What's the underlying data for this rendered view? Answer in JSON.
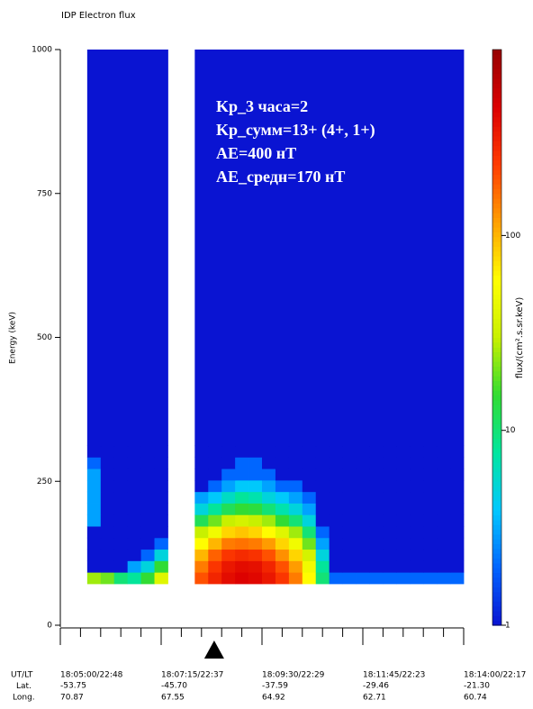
{
  "chart_data": {
    "type": "heatmap",
    "title": "IDP Electron flux",
    "ylabel": "Energy (keV)",
    "colorbar_label": "flux/(cm².s.sr.keV)",
    "annotations": [
      "Kp_3 часа=2",
      "Kp_сумм=13+ (4+, 1+)",
      "AE=400 нТ",
      "AE_средн=170 нТ"
    ],
    "xlim": [
      0,
      540
    ],
    "ylim": [
      0,
      1000
    ],
    "yticks": [
      0,
      250,
      500,
      750,
      1000
    ],
    "xticks": [
      {
        "value": 0,
        "label": "18:05:00/22:48"
      },
      {
        "value": 135,
        "label": "18:07:15/22:37"
      },
      {
        "value": 270,
        "label": "18:09:30/22:29"
      },
      {
        "value": 405,
        "label": "18:11:45/22:23"
      },
      {
        "value": 540,
        "label": "18:14:00/22:17"
      }
    ],
    "xminorticks": [
      27,
      54,
      81,
      108,
      162,
      189,
      216,
      243,
      297,
      324,
      351,
      378,
      432,
      459,
      486,
      513
    ],
    "xtick_rows": [
      "UT/LT",
      "Lat.",
      "Long."
    ],
    "lat": [
      "-53.75",
      "-45.70",
      "-37.59",
      "-29.46",
      "-21.30"
    ],
    "long": [
      "70.87",
      "67.55",
      "64.92",
      "62.71",
      "60.74"
    ],
    "marker_x": 206,
    "clim": [
      1,
      900
    ],
    "clog": true,
    "cticks": [
      1,
      10,
      100
    ],
    "colormap": [
      "#0a14d2",
      "#0064ff",
      "#00c8ff",
      "#00e6a0",
      "#32dc32",
      "#c8f000",
      "#ffff00",
      "#ffa000",
      "#ff3c00",
      "#dc0000",
      "#960000"
    ],
    "x_edges": [
      0,
      18,
      36,
      54,
      72,
      90,
      108,
      126,
      144,
      162,
      180,
      198,
      216,
      234,
      252,
      270,
      288,
      306,
      324,
      342,
      360,
      378,
      396,
      414,
      432,
      450,
      468,
      486,
      504,
      522,
      540
    ],
    "y_edges": [
      72,
      92,
      112,
      132,
      152,
      172,
      192,
      212,
      232,
      252,
      272,
      292,
      312,
      1000
    ],
    "z": [
      [
        null,
        null,
        25,
        20,
        10,
        8,
        15,
        40,
        null,
        null,
        200,
        300,
        400,
        450,
        420,
        350,
        250,
        150,
        60,
        10,
        2,
        2,
        2,
        2,
        2,
        2,
        2,
        2,
        2,
        2
      ],
      [
        null,
        null,
        1,
        1,
        1,
        3,
        5,
        15,
        null,
        null,
        150,
        250,
        350,
        400,
        380,
        300,
        200,
        120,
        50,
        8,
        1,
        1,
        1,
        1,
        1,
        1,
        1,
        1,
        1,
        1
      ],
      [
        null,
        null,
        1,
        1,
        1,
        1,
        2,
        5,
        null,
        null,
        100,
        180,
        250,
        280,
        260,
        200,
        130,
        80,
        35,
        5,
        1,
        1,
        1,
        1,
        1,
        1,
        1,
        1,
        1,
        1
      ],
      [
        null,
        null,
        1,
        1,
        1,
        1,
        1,
        2,
        null,
        null,
        60,
        100,
        150,
        160,
        150,
        120,
        80,
        50,
        20,
        3,
        1,
        1,
        1,
        1,
        1,
        1,
        1,
        1,
        1,
        1
      ],
      [
        null,
        null,
        1,
        1,
        1,
        1,
        1,
        1,
        null,
        null,
        30,
        50,
        80,
        90,
        80,
        60,
        40,
        25,
        10,
        2,
        1,
        1,
        1,
        1,
        1,
        1,
        1,
        1,
        1,
        1
      ],
      [
        null,
        null,
        3,
        1,
        1,
        1,
        1,
        1,
        null,
        null,
        12,
        20,
        30,
        35,
        30,
        25,
        15,
        10,
        5,
        1,
        1,
        1,
        1,
        1,
        1,
        1,
        1,
        1,
        1,
        1
      ],
      [
        null,
        null,
        3,
        1,
        1,
        1,
        1,
        1,
        null,
        null,
        5,
        8,
        12,
        15,
        14,
        10,
        7,
        5,
        3,
        1,
        1,
        1,
        1,
        1,
        1,
        1,
        1,
        1,
        1,
        1
      ],
      [
        null,
        null,
        3,
        1,
        1,
        1,
        1,
        1,
        null,
        null,
        3,
        4,
        6,
        8,
        7,
        5,
        4,
        3,
        2,
        1,
        1,
        1,
        1,
        1,
        1,
        1,
        1,
        1,
        1,
        1
      ],
      [
        null,
        null,
        3,
        1,
        1,
        1,
        1,
        1,
        null,
        null,
        1,
        2,
        3,
        4,
        4,
        3,
        2,
        2,
        1,
        1,
        1,
        1,
        1,
        1,
        1,
        1,
        1,
        1,
        1,
        1
      ],
      [
        null,
        null,
        3,
        1,
        1,
        1,
        1,
        1,
        null,
        null,
        1,
        1,
        2,
        2,
        2,
        2,
        1,
        1,
        1,
        1,
        1,
        1,
        1,
        1,
        1,
        1,
        1,
        1,
        1,
        1
      ],
      [
        null,
        null,
        2,
        1,
        1,
        1,
        1,
        1,
        null,
        null,
        1,
        1,
        1,
        2,
        2,
        1,
        1,
        1,
        1,
        1,
        1,
        1,
        1,
        1,
        1,
        1,
        1,
        1,
        1,
        1
      ],
      [
        null,
        null,
        1,
        1,
        1,
        1,
        1,
        1,
        null,
        null,
        1,
        1,
        1,
        1,
        1,
        1,
        1,
        1,
        1,
        1,
        1,
        1,
        1,
        1,
        1,
        1,
        1,
        1,
        1,
        1
      ],
      [
        null,
        null,
        1,
        1,
        1,
        1,
        1,
        1,
        null,
        null,
        1,
        1,
        1,
        1,
        1,
        1,
        1,
        1,
        1,
        1,
        1,
        1,
        1,
        1,
        1,
        1,
        1,
        1,
        1,
        1
      ]
    ]
  }
}
